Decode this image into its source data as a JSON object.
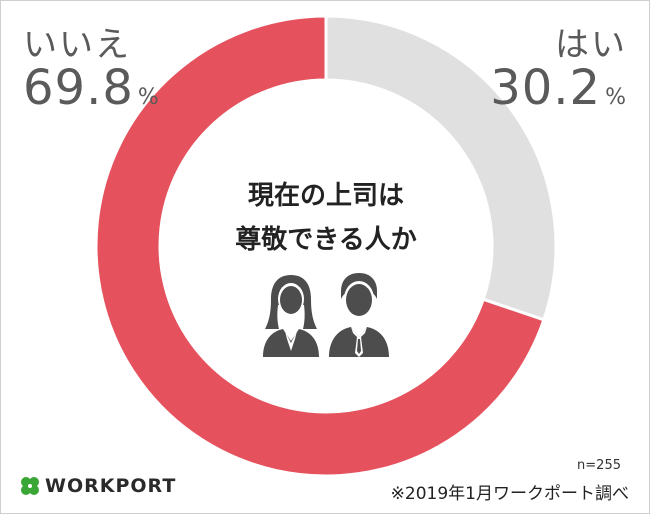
{
  "chart_data": {
    "type": "pie",
    "variant": "donut",
    "title": "現在の上司は尊敬できる人か",
    "title_lines": [
      "現在の上司は",
      "尊敬できる人か"
    ],
    "slices": [
      {
        "label": "はい",
        "value": 30.2,
        "value_text": "30.2",
        "color": "#e0e0e0"
      },
      {
        "label": "いいえ",
        "value": 69.8,
        "value_text": "69.8",
        "color": "#e5525d"
      }
    ],
    "unit": "%",
    "start": "12 o'clock, clockwise"
  },
  "notes": {
    "sample": "n=255",
    "source": "※2019年1月ワークポート調べ"
  },
  "logo": {
    "text": "WORKPORT",
    "icon": "four-leaf-clover-icon",
    "color": "#3aa635"
  },
  "icons": [
    "woman-avatar-icon",
    "man-avatar-icon"
  ],
  "colors": {
    "text_gray": "#5a5a5a",
    "icon_gray": "#4d4d4d"
  }
}
